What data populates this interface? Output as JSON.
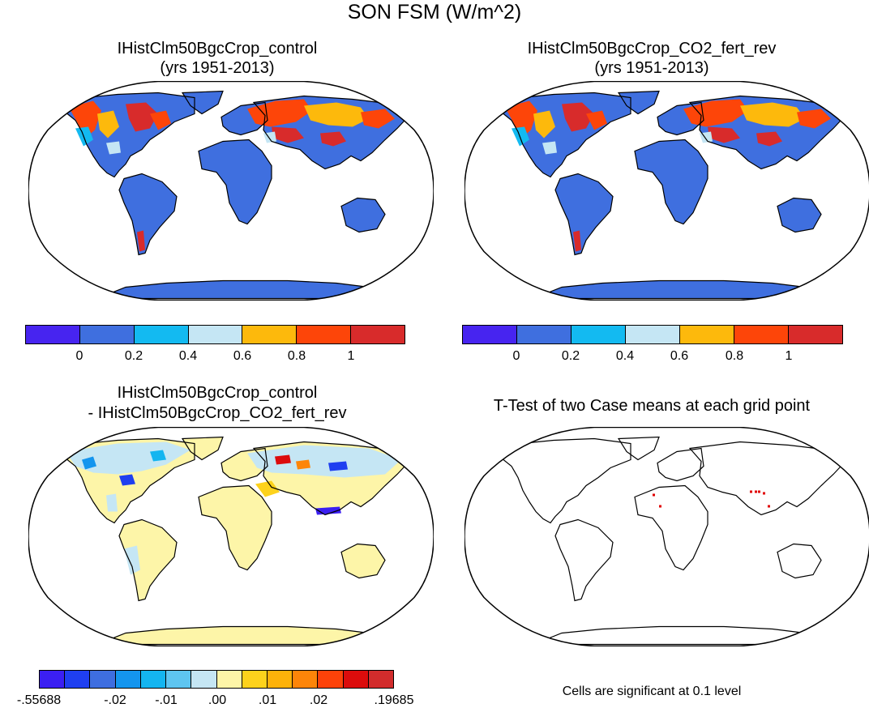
{
  "title": "SON FSM (W/m^2)",
  "panels": [
    {
      "line1": "IHistClm50BgcCrop_control",
      "line2": "(yrs 1951-2013)"
    },
    {
      "line1": "IHistClm50BgcCrop_CO2_fert_rev",
      "line2": "(yrs 1951-2013)"
    },
    {
      "line1": "IHistClm50BgcCrop_control",
      "line2": "- IHistClm50BgcCrop_CO2_fert_rev"
    },
    {
      "line1": "T-Test of two Case means at each grid point",
      "line2": ""
    }
  ],
  "colorbar_main": {
    "colors": [
      "#4724f0",
      "#3f6fdf",
      "#13baf1",
      "#c5e6f4",
      "#fdb90c",
      "#fd4509",
      "#d82b2b"
    ],
    "labels": [
      "0",
      "0.2",
      "0.4",
      "0.6",
      "0.8",
      "1"
    ]
  },
  "colorbar_diff": {
    "colors": [
      "#3b1ff2",
      "#1f3ff0",
      "#3e6ee0",
      "#1495ee",
      "#14b5f0",
      "#5ec5f0",
      "#c5e6f4",
      "#fdf5a8",
      "#fdd21c",
      "#fdb20a",
      "#fd8509",
      "#fd4209",
      "#dc0c0c",
      "#d22c2c"
    ],
    "labels": [
      "-.55688",
      "-.02",
      "-.01",
      ".00",
      ".01",
      ".02",
      ".19685"
    ]
  },
  "note": "Cells are significant at 0.1 level"
}
